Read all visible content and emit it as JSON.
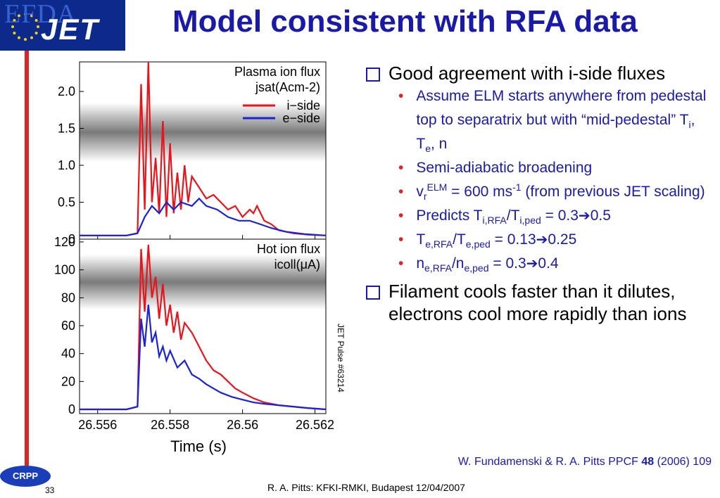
{
  "header": {
    "logo_efda": "EFDA",
    "logo_jet": "JET",
    "title": "Model consistent with RFA data"
  },
  "figure": {
    "top_panel_label": "Plasma ion flux",
    "top_panel_quantity": "jsat(Acm-2)",
    "bottom_panel_label": "Hot ion flux",
    "bottom_panel_quantity": "icoll(μA)",
    "legend_i": "i−side",
    "legend_e": "e−side",
    "pulse_label": "JET Pulse #63214",
    "xlabel": "Time (s)",
    "colors": {
      "i_side": "#e8141b",
      "e_side": "#1a23d8"
    }
  },
  "chart_data": [
    {
      "type": "line",
      "title": "Plasma ion flux",
      "ylabel": "jsat(Acm-2)",
      "xlabel": "Time (s)",
      "x_ticks": [
        "26.556",
        "26.558",
        "26.56",
        "26.562"
      ],
      "y_ticks": [
        "0",
        "0.5",
        "1.0",
        "1.5",
        "2.0"
      ],
      "xlim": [
        26.5555,
        26.5623
      ],
      "ylim": [
        0,
        2.4
      ],
      "series": [
        {
          "name": "i−side",
          "x": [
            26.5555,
            26.5568,
            26.5571,
            26.5572,
            26.5573,
            26.5574,
            26.5575,
            26.5576,
            26.5577,
            26.5578,
            26.5579,
            26.558,
            26.5581,
            26.5582,
            26.5583,
            26.5584,
            26.5585,
            26.5586,
            26.5588,
            26.559,
            26.5592,
            26.5594,
            26.5596,
            26.5598,
            26.56,
            26.5602,
            26.5603,
            26.5604,
            26.5606,
            26.5608,
            26.561,
            26.5614,
            26.5618,
            26.5623
          ],
          "y": [
            0.05,
            0.05,
            0.08,
            2.1,
            0.4,
            2.4,
            0.5,
            1.1,
            0.35,
            1.6,
            0.3,
            1.3,
            0.35,
            0.9,
            0.4,
            1.0,
            0.5,
            0.85,
            0.7,
            0.55,
            0.6,
            0.5,
            0.4,
            0.45,
            0.3,
            0.4,
            0.35,
            0.45,
            0.25,
            0.2,
            0.12,
            0.08,
            0.06,
            0.05
          ]
        },
        {
          "name": "e−side",
          "x": [
            26.5555,
            26.5568,
            26.5571,
            26.5573,
            26.5575,
            26.5577,
            26.5579,
            26.5581,
            26.5583,
            26.5586,
            26.5588,
            26.559,
            26.5593,
            26.5596,
            26.5599,
            26.5602,
            26.5605,
            26.5608,
            26.5612,
            26.5617,
            26.5623
          ],
          "y": [
            0.05,
            0.05,
            0.08,
            0.3,
            0.45,
            0.35,
            0.5,
            0.4,
            0.5,
            0.45,
            0.55,
            0.45,
            0.4,
            0.3,
            0.25,
            0.25,
            0.2,
            0.15,
            0.1,
            0.07,
            0.05
          ]
        }
      ]
    },
    {
      "type": "line",
      "title": "Hot ion flux",
      "ylabel": "icoll(μA)",
      "xlabel": "Time (s)",
      "x_ticks": [
        "26.556",
        "26.558",
        "26.56",
        "26.562"
      ],
      "y_ticks": [
        "0",
        "20",
        "40",
        "60",
        "80",
        "100",
        "120"
      ],
      "xlim": [
        26.5555,
        26.5623
      ],
      "ylim": [
        -3,
        122
      ],
      "series": [
        {
          "name": "i−side",
          "x": [
            26.5555,
            26.5568,
            26.5571,
            26.5572,
            26.5573,
            26.5574,
            26.5575,
            26.5576,
            26.5577,
            26.5578,
            26.5579,
            26.558,
            26.5581,
            26.5582,
            26.5583,
            26.5584,
            26.5586,
            26.5588,
            26.559,
            26.5592,
            26.5594,
            26.5596,
            26.5598,
            26.56,
            26.5603,
            26.5606,
            26.561,
            26.5614,
            26.5618,
            26.5623
          ],
          "y": [
            0,
            0,
            2,
            115,
            70,
            118,
            80,
            95,
            65,
            90,
            60,
            75,
            55,
            70,
            50,
            62,
            55,
            45,
            35,
            28,
            25,
            20,
            15,
            12,
            8,
            5,
            3,
            2,
            1,
            0
          ]
        },
        {
          "name": "e−side",
          "x": [
            26.5555,
            26.5568,
            26.5571,
            26.5572,
            26.5573,
            26.5574,
            26.5575,
            26.5576,
            26.5577,
            26.5578,
            26.5579,
            26.558,
            26.5582,
            26.5584,
            26.5586,
            26.5588,
            26.559,
            26.5592,
            26.5594,
            26.5597,
            26.56,
            26.5603,
            26.5606,
            26.561,
            26.5614,
            26.5618,
            26.5623
          ],
          "y": [
            0,
            0,
            2,
            65,
            45,
            75,
            48,
            55,
            38,
            45,
            35,
            42,
            30,
            35,
            25,
            22,
            18,
            15,
            12,
            9,
            7,
            5,
            4,
            3,
            2,
            1,
            0
          ]
        }
      ]
    }
  ],
  "bullets": [
    {
      "level": 1,
      "text": "Good agreement with i-side fluxes"
    },
    {
      "level": 2,
      "text": "Assume ELM starts anywhere from pedestal top to separatrix but with “mid-pedestal” T",
      "sub1": "i",
      "mid1": ", T",
      "sub2": "e",
      "tail": ", n"
    },
    {
      "level": 2,
      "text": "Semi-adiabatic broadening"
    },
    {
      "level": 2,
      "pre": "v",
      "sub": "r",
      "sup": "ELM",
      "mid": " = 600 ms",
      "sup2": "-1",
      "tail": " (from previous JET scaling)"
    },
    {
      "level": 2,
      "pre": "Predicts T",
      "sub": "i,RFA",
      "mid": "/T",
      "sub2": "i,ped",
      "tail": " = 0.3",
      "arrow": "➔",
      "end": "0.5"
    },
    {
      "level": 2,
      "pre": "T",
      "sub": "e,RFA",
      "mid": "/T",
      "sub2": "e,ped",
      "tail": " = 0.13",
      "arrow": "➔",
      "end": "0.25"
    },
    {
      "level": 2,
      "pre": "n",
      "sub": "e,RFA",
      "mid": "/n",
      "sub2": "e,ped",
      "tail": " = 0.3",
      "arrow": "➔",
      "end": "0.4"
    },
    {
      "level": 1,
      "text": "Filament cools faster than it dilutes, electrons cool more rapidly than ions"
    }
  ],
  "reference": {
    "pre": "W. Fundamenski & R. A. Pitts PPCF ",
    "bold": "48",
    "post": " (2006) 109"
  },
  "footer": {
    "logo": "CRPP",
    "page": "33",
    "text": "R. A. Pitts: KFKI-RMKI, Budapest 12/04/2007"
  }
}
